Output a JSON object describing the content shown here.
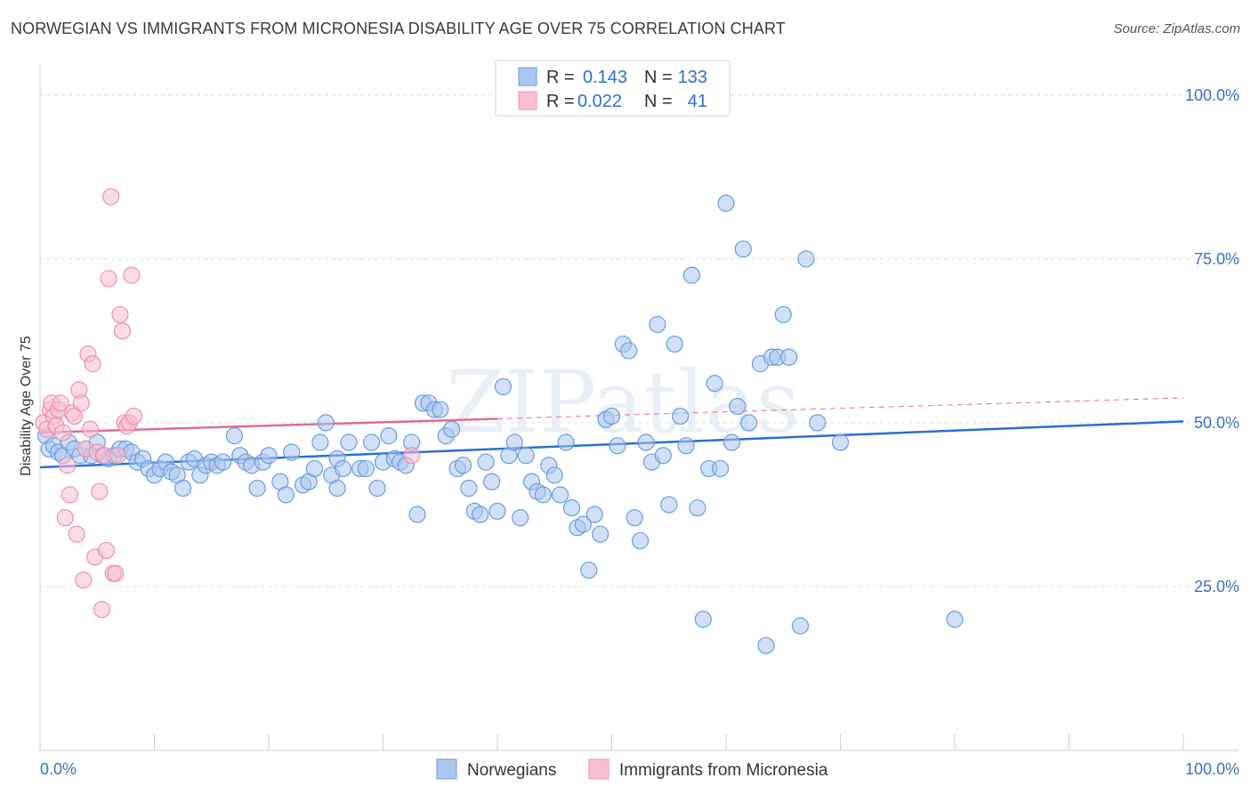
{
  "title": "NORWEGIAN VS IMMIGRANTS FROM MICRONESIA DISABILITY AGE OVER 75 CORRELATION CHART",
  "source": "Source: ZipAtlas.com",
  "watermark": "ZIPatlas",
  "chart_data": {
    "type": "scatter",
    "xlabel": "",
    "ylabel": "Disability Age Over 75",
    "xlim": [
      0,
      100
    ],
    "ylim": [
      0,
      105
    ],
    "x_tick_labels": [
      {
        "value": 0,
        "label": "0.0%"
      },
      {
        "value": 100,
        "label": "100.0%"
      }
    ],
    "y_tick_labels": [
      {
        "value": 25,
        "label": "25.0%"
      },
      {
        "value": 50,
        "label": "50.0%"
      },
      {
        "value": 75,
        "label": "75.0%"
      },
      {
        "value": 100,
        "label": "100.0%"
      }
    ],
    "legend_entries": [
      {
        "r_label": "R =",
        "r_value": "0.143",
        "n_label": "N =",
        "n_value": "133"
      },
      {
        "r_label": "R =",
        "r_value": "0.022",
        "n_label": "N =",
        "n_value": "41"
      }
    ],
    "series": [
      {
        "name": "Norwegians",
        "color": "#6b9be0",
        "fill": "#aac7f0",
        "line_color": "#2a6fd1",
        "trend": {
          "x": [
            0,
            100
          ],
          "y": [
            43.2,
            50.2
          ],
          "dashed_from": null
        },
        "points": [
          [
            0.5,
            48
          ],
          [
            0.8,
            46
          ],
          [
            1.2,
            46.5
          ],
          [
            1.6,
            45.5
          ],
          [
            2.0,
            45
          ],
          [
            2.5,
            47
          ],
          [
            3.0,
            46
          ],
          [
            3.5,
            45
          ],
          [
            4.0,
            46
          ],
          [
            4.5,
            45
          ],
          [
            5.0,
            47
          ],
          [
            5.5,
            45
          ],
          [
            6.0,
            44.5
          ],
          [
            6.5,
            45
          ],
          [
            7.0,
            46
          ],
          [
            7.5,
            46
          ],
          [
            8.0,
            45.5
          ],
          [
            8.5,
            44
          ],
          [
            9.0,
            44.5
          ],
          [
            9.5,
            43
          ],
          [
            10.0,
            42
          ],
          [
            10.5,
            43
          ],
          [
            11.0,
            44
          ],
          [
            11.5,
            42.5
          ],
          [
            12.0,
            42
          ],
          [
            12.5,
            40
          ],
          [
            13.0,
            44
          ],
          [
            13.5,
            44.5
          ],
          [
            14.0,
            42
          ],
          [
            14.5,
            43.5
          ],
          [
            15.0,
            44
          ],
          [
            15.5,
            43.5
          ],
          [
            16.0,
            44
          ],
          [
            17.0,
            48
          ],
          [
            17.5,
            45
          ],
          [
            18.0,
            44
          ],
          [
            18.5,
            43.5
          ],
          [
            19.0,
            40
          ],
          [
            19.5,
            44
          ],
          [
            20.0,
            45
          ],
          [
            21.0,
            41
          ],
          [
            21.5,
            39
          ],
          [
            22.0,
            45.5
          ],
          [
            23.0,
            40.5
          ],
          [
            23.5,
            41
          ],
          [
            24.0,
            43
          ],
          [
            24.5,
            47
          ],
          [
            25.0,
            50
          ],
          [
            25.5,
            42
          ],
          [
            26.0,
            44.5
          ],
          [
            26.5,
            43
          ],
          [
            27.0,
            47
          ],
          [
            28.0,
            43
          ],
          [
            28.5,
            43
          ],
          [
            29.0,
            47
          ],
          [
            29.5,
            40
          ],
          [
            30.0,
            44
          ],
          [
            30.5,
            48
          ],
          [
            31.0,
            44.5
          ],
          [
            31.5,
            44
          ],
          [
            32.0,
            43.5
          ],
          [
            32.5,
            47
          ],
          [
            33.0,
            36
          ],
          [
            33.5,
            53
          ],
          [
            34.0,
            53
          ],
          [
            34.5,
            52
          ],
          [
            35.0,
            52
          ],
          [
            35.5,
            48
          ],
          [
            36.0,
            49
          ],
          [
            36.5,
            43
          ],
          [
            37.0,
            43.5
          ],
          [
            37.5,
            40
          ],
          [
            38.0,
            36.5
          ],
          [
            38.5,
            36
          ],
          [
            39.0,
            44
          ],
          [
            39.5,
            41
          ],
          [
            40.0,
            36.5
          ],
          [
            40.5,
            55.5
          ],
          [
            41.0,
            45
          ],
          [
            41.5,
            47
          ],
          [
            42.0,
            35.5
          ],
          [
            42.5,
            45
          ],
          [
            43.0,
            41
          ],
          [
            43.5,
            39.5
          ],
          [
            44.0,
            39
          ],
          [
            44.5,
            43.5
          ],
          [
            45.0,
            42
          ],
          [
            45.5,
            39
          ],
          [
            46.0,
            47
          ],
          [
            46.5,
            37
          ],
          [
            47.0,
            34
          ],
          [
            47.5,
            34.5
          ],
          [
            48.0,
            27.5
          ],
          [
            48.5,
            36
          ],
          [
            49.0,
            33
          ],
          [
            49.5,
            50.5
          ],
          [
            50.0,
            51
          ],
          [
            50.5,
            46.5
          ],
          [
            51.0,
            62
          ],
          [
            51.5,
            61
          ],
          [
            52.0,
            35.5
          ],
          [
            52.5,
            32
          ],
          [
            53.0,
            47
          ],
          [
            53.5,
            44
          ],
          [
            54.0,
            65
          ],
          [
            54.5,
            45
          ],
          [
            55.0,
            37.5
          ],
          [
            55.5,
            62
          ],
          [
            56.0,
            51
          ],
          [
            56.5,
            46.5
          ],
          [
            57.0,
            72.5
          ],
          [
            57.5,
            37
          ],
          [
            58.0,
            20
          ],
          [
            58.5,
            43
          ],
          [
            59.0,
            56
          ],
          [
            59.5,
            43
          ],
          [
            60.0,
            83.5
          ],
          [
            60.5,
            47
          ],
          [
            61.0,
            52.5
          ],
          [
            61.5,
            76.5
          ],
          [
            62.0,
            50
          ],
          [
            63.0,
            59
          ],
          [
            63.5,
            16
          ],
          [
            64.0,
            60
          ],
          [
            64.5,
            60
          ],
          [
            65.0,
            66.5
          ],
          [
            65.5,
            60
          ],
          [
            66.5,
            19
          ],
          [
            67.0,
            75
          ],
          [
            68.0,
            50
          ],
          [
            70.0,
            47
          ],
          [
            80.0,
            20
          ],
          [
            26.0,
            40
          ]
        ]
      },
      {
        "name": "Immigrants from Micronesia",
        "color": "#ee8fae",
        "fill": "#f8bfd2",
        "line_color": "#e06c93",
        "trend": {
          "x": [
            0,
            40,
            100
          ],
          "y": [
            48.5,
            50.6,
            53.8
          ],
          "dashed_from": 40
        },
        "points": [
          [
            0.3,
            50
          ],
          [
            0.6,
            49
          ],
          [
            0.9,
            52
          ],
          [
            1.0,
            53
          ],
          [
            1.2,
            51
          ],
          [
            1.4,
            49.5
          ],
          [
            1.6,
            52
          ],
          [
            1.8,
            53
          ],
          [
            2.0,
            48.5
          ],
          [
            2.2,
            35.5
          ],
          [
            2.4,
            43.5
          ],
          [
            2.6,
            39
          ],
          [
            2.8,
            51.5
          ],
          [
            3.0,
            51
          ],
          [
            3.2,
            33
          ],
          [
            3.4,
            55
          ],
          [
            3.6,
            53
          ],
          [
            3.8,
            26
          ],
          [
            4.0,
            46
          ],
          [
            4.2,
            60.5
          ],
          [
            4.4,
            49
          ],
          [
            4.6,
            59
          ],
          [
            4.8,
            29.5
          ],
          [
            5.0,
            45.5
          ],
          [
            5.2,
            39.5
          ],
          [
            5.4,
            21.5
          ],
          [
            5.6,
            45
          ],
          [
            5.8,
            30.5
          ],
          [
            6.0,
            72
          ],
          [
            6.2,
            84.5
          ],
          [
            6.4,
            27
          ],
          [
            6.6,
            27
          ],
          [
            6.8,
            45
          ],
          [
            7.0,
            66.5
          ],
          [
            7.2,
            64
          ],
          [
            7.4,
            50
          ],
          [
            7.6,
            49.5
          ],
          [
            7.8,
            50
          ],
          [
            8.0,
            72.5
          ],
          [
            8.2,
            51
          ],
          [
            32.5,
            45
          ]
        ]
      }
    ]
  }
}
